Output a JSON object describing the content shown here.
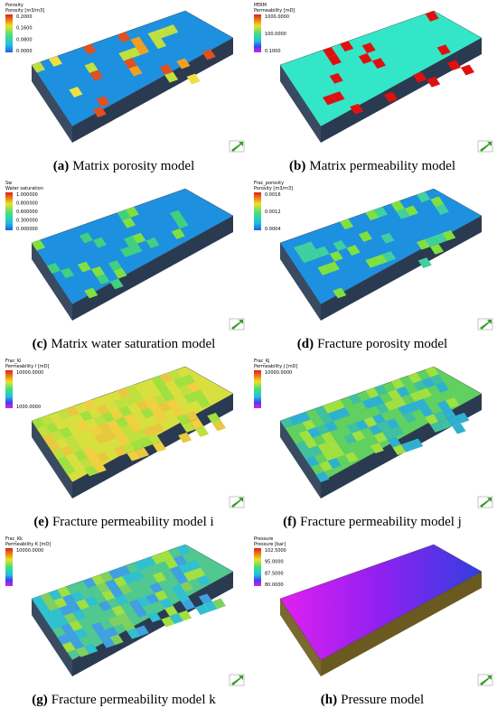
{
  "panels": [
    {
      "legend_title": "Porosity",
      "legend_unit": "Porosity [m3/m3]",
      "legend_ticks": [
        "0.2000",
        "0.1600",
        "0.0800",
        "0.0000"
      ],
      "letter": "(a)",
      "caption": "Matrix porosity model"
    },
    {
      "legend_title": "PERM",
      "legend_unit": "Permeability [mD]",
      "legend_ticks": [
        "1000.0000",
        "100.0000",
        "0.1000"
      ],
      "letter": "(b)",
      "caption": "Matrix permeability model"
    },
    {
      "legend_title": "Sw",
      "legend_unit": "Water saturation",
      "legend_ticks": [
        "1.000000",
        "0.800000",
        "0.600000",
        "0.300000",
        "0.000000"
      ],
      "letter": "(c)",
      "caption": "Matrix water saturation model"
    },
    {
      "legend_title": "Frac_porosity",
      "legend_unit": "Porosity [m3/m3]",
      "legend_ticks": [
        "0.0016",
        "0.0012",
        "0.0004"
      ],
      "letter": "(d)",
      "caption": "Fracture porosity model"
    },
    {
      "legend_title": "Frac_Ki",
      "legend_unit": "Permeability I [mD]",
      "legend_ticks": [
        "10000.0000",
        "1000.0000"
      ],
      "letter": "(e)",
      "caption": "Fracture permeability model i"
    },
    {
      "legend_title": "Frac_Kj",
      "legend_unit": "Permeability J [mD]",
      "legend_ticks": [
        "10000.0000"
      ],
      "letter": "(f)",
      "caption": "Fracture permeability model j"
    },
    {
      "legend_title": "Frac_Kk",
      "legend_unit": "Permeability K [mD]",
      "legend_ticks": [
        "10000.0000"
      ],
      "letter": "(g)",
      "caption": "Fracture permeability model k"
    },
    {
      "legend_title": "Pressure",
      "legend_unit": "Pressure [bar]",
      "legend_ticks": [
        "102.5000",
        "95.0000",
        "87.5000",
        "80.0000"
      ],
      "letter": "(h)",
      "caption": "Pressure model"
    }
  ]
}
